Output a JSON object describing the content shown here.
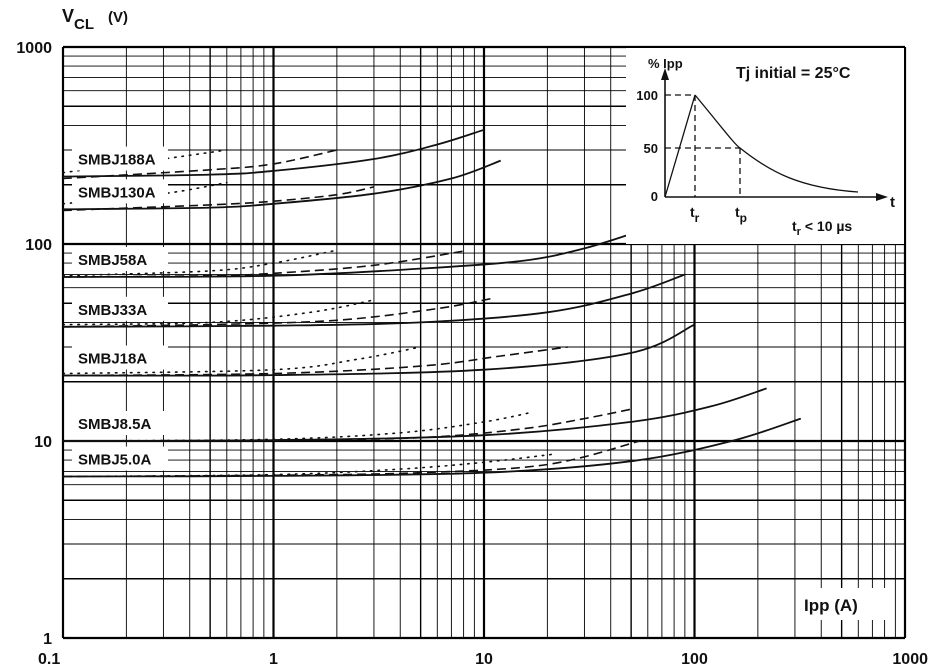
{
  "chart_data": {
    "type": "line",
    "xscale": "log",
    "yscale": "log",
    "xlim": [
      0.1,
      1000
    ],
    "ylim": [
      1,
      1000
    ],
    "grid": true,
    "ylabel": {
      "main": "V",
      "sub": "CL",
      "unit": "(V)"
    },
    "xlabel": "Ipp (A)",
    "xticks": [
      {
        "value": 0.1,
        "label": "0.1"
      },
      {
        "value": 1,
        "label": "1"
      },
      {
        "value": 10,
        "label": "10"
      },
      {
        "value": 100,
        "label": "100"
      },
      {
        "value": 1000,
        "label": "1000"
      }
    ],
    "yticks": [
      {
        "value": 1,
        "label": "1"
      },
      {
        "value": 10,
        "label": "10"
      },
      {
        "value": 100,
        "label": "100"
      },
      {
        "value": 1000,
        "label": "1000"
      }
    ],
    "devices": [
      {
        "label": "SMBJ188A",
        "solid": [
          [
            0.1,
            220
          ],
          [
            0.5,
            225
          ],
          [
            1,
            235
          ],
          [
            3,
            270
          ],
          [
            6,
            320
          ],
          [
            10,
            380
          ]
        ],
        "dashed": [
          [
            0.1,
            215
          ],
          [
            0.5,
            238
          ],
          [
            1,
            255
          ],
          [
            2,
            300
          ]
        ],
        "dotted": [
          [
            0.1,
            230
          ],
          [
            0.3,
            270
          ],
          [
            0.6,
            300
          ]
        ]
      },
      {
        "label": "SMBJ130A",
        "solid": [
          [
            0.1,
            150
          ],
          [
            0.5,
            153
          ],
          [
            1,
            160
          ],
          [
            3,
            180
          ],
          [
            7,
            215
          ],
          [
            12,
            265
          ]
        ],
        "dashed": [
          [
            0.1,
            148
          ],
          [
            0.5,
            158
          ],
          [
            1,
            165
          ],
          [
            2,
            178
          ],
          [
            3,
            195
          ]
        ],
        "dotted": [
          [
            0.1,
            160
          ],
          [
            0.3,
            180
          ],
          [
            0.6,
            205
          ]
        ]
      },
      {
        "label": "SMBJ58A",
        "solid": [
          [
            0.1,
            68
          ],
          [
            1,
            69
          ],
          [
            5,
            75
          ],
          [
            15,
            82
          ],
          [
            30,
            95
          ],
          [
            60,
            120
          ]
        ],
        "dashed": [
          [
            0.1,
            68
          ],
          [
            0.5,
            69
          ],
          [
            1,
            71
          ],
          [
            3,
            78
          ],
          [
            8,
            92
          ]
        ],
        "dotted": [
          [
            0.1,
            69
          ],
          [
            0.5,
            73
          ],
          [
            1,
            80
          ],
          [
            2,
            93
          ]
        ]
      },
      {
        "label": "SMBJ33A",
        "solid": [
          [
            0.1,
            38
          ],
          [
            1,
            38.5
          ],
          [
            5,
            40
          ],
          [
            20,
            45
          ],
          [
            50,
            56
          ],
          [
            90,
            70
          ]
        ],
        "dashed": [
          [
            0.1,
            38
          ],
          [
            0.5,
            39
          ],
          [
            2,
            41
          ],
          [
            6,
            47
          ],
          [
            11,
            53
          ]
        ],
        "dotted": [
          [
            0.1,
            39
          ],
          [
            0.5,
            40
          ],
          [
            1.5,
            45
          ],
          [
            3,
            52
          ]
        ]
      },
      {
        "label": "SMBJ18A",
        "solid": [
          [
            0.1,
            21.5
          ],
          [
            1,
            21.6
          ],
          [
            10,
            23
          ],
          [
            50,
            28
          ],
          [
            100,
            39
          ]
        ],
        "dashed": [
          [
            0.1,
            21.5
          ],
          [
            1,
            22
          ],
          [
            5,
            24
          ],
          [
            12,
            27
          ],
          [
            25,
            30
          ]
        ],
        "dotted": [
          [
            0.1,
            22
          ],
          [
            1,
            23
          ],
          [
            2.5,
            26
          ],
          [
            5,
            30
          ]
        ]
      },
      {
        "label": "SMBJ8.5A",
        "solid": [
          [
            0.1,
            10
          ],
          [
            1,
            10.1
          ],
          [
            10,
            10.7
          ],
          [
            50,
            12.5
          ],
          [
            120,
            15
          ],
          [
            220,
            18.5
          ]
        ],
        "dashed": [
          [
            0.1,
            10
          ],
          [
            1,
            10.1
          ],
          [
            5,
            10.4
          ],
          [
            15,
            11.5
          ],
          [
            30,
            13
          ],
          [
            50,
            14.5
          ]
        ],
        "dotted": [
          [
            0.1,
            10
          ],
          [
            1,
            10.2
          ],
          [
            4,
            11
          ],
          [
            10,
            12.5
          ],
          [
            17,
            14
          ]
        ]
      },
      {
        "label": "SMBJ5.0A",
        "solid": [
          [
            0.1,
            6.6
          ],
          [
            1,
            6.65
          ],
          [
            10,
            6.9
          ],
          [
            50,
            7.9
          ],
          [
            150,
            10
          ],
          [
            320,
            13
          ]
        ],
        "dashed": [
          [
            0.1,
            6.6
          ],
          [
            1,
            6.7
          ],
          [
            5,
            6.9
          ],
          [
            20,
            7.6
          ],
          [
            55,
            10
          ]
        ],
        "dotted": [
          [
            0.1,
            6.6
          ],
          [
            1,
            6.75
          ],
          [
            4,
            7.2
          ],
          [
            10,
            7.8
          ],
          [
            22,
            8.6
          ]
        ]
      }
    ],
    "inset": {
      "ylabel": "% Ipp",
      "xlabel": "t",
      "title": "Tj initial = 25°C",
      "yticks": [
        "100",
        "50",
        "0"
      ],
      "tr_label": "t",
      "tr_sub": "r",
      "tp_label": "t",
      "tp_sub": "p",
      "note_main": "t",
      "note_sub": "r",
      "note_rest": " < 10 µs"
    }
  }
}
